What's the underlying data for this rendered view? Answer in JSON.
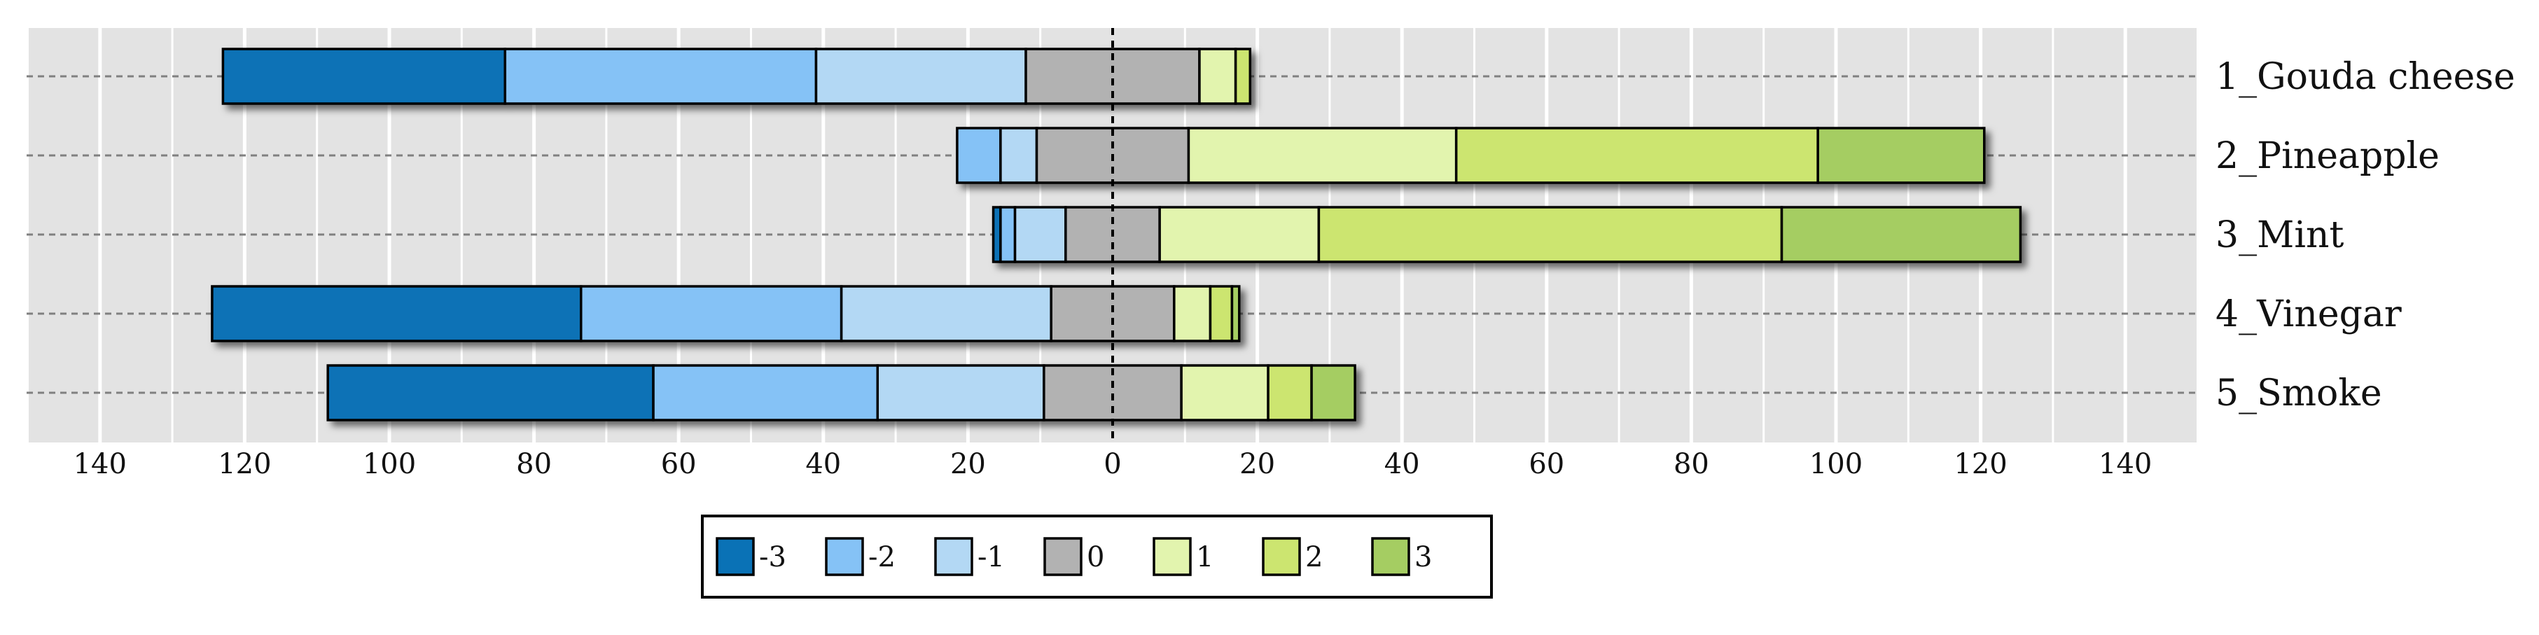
{
  "chart_data": {
    "type": "bar",
    "orientation": "horizontal",
    "stacked": "diverging",
    "title": "",
    "xlabel": "",
    "ylabel": "",
    "xlim": [
      -150,
      150
    ],
    "xticks": [
      -140,
      -120,
      -100,
      -80,
      -60,
      -40,
      -20,
      0,
      20,
      40,
      60,
      80,
      100,
      120,
      140
    ],
    "xtick_labels": [
      "140",
      "120",
      "100",
      "80",
      "60",
      "40",
      "20",
      "0",
      "20",
      "40",
      "60",
      "80",
      "100",
      "120",
      "140"
    ],
    "grid": true,
    "legend_position": "bottom-center",
    "categories": [
      "1_Gouda cheese",
      "2_Pineapple",
      "3_Mint",
      "4_Vinegar",
      "5_Smoke"
    ],
    "series": [
      {
        "name": "-3",
        "color": "#0a72b6",
        "values": [
          39,
          0,
          1,
          51,
          45
        ]
      },
      {
        "name": "-2",
        "color": "#85c2f6",
        "values": [
          43,
          6,
          2,
          36,
          31
        ]
      },
      {
        "name": "-1",
        "color": "#b3d8f4",
        "values": [
          29,
          5,
          7,
          29,
          23
        ]
      },
      {
        "name": "0",
        "color": "#b2b2b2",
        "values": [
          24,
          21,
          13,
          17,
          19
        ]
      },
      {
        "name": "1",
        "color": "#e2f4ae",
        "values": [
          5,
          37,
          22,
          5,
          12
        ]
      },
      {
        "name": "2",
        "color": "#cce570",
        "values": [
          2,
          50,
          64,
          3,
          6
        ]
      },
      {
        "name": "3",
        "color": "#a5cd62",
        "values": [
          0,
          23,
          33,
          1,
          6
        ]
      }
    ]
  }
}
